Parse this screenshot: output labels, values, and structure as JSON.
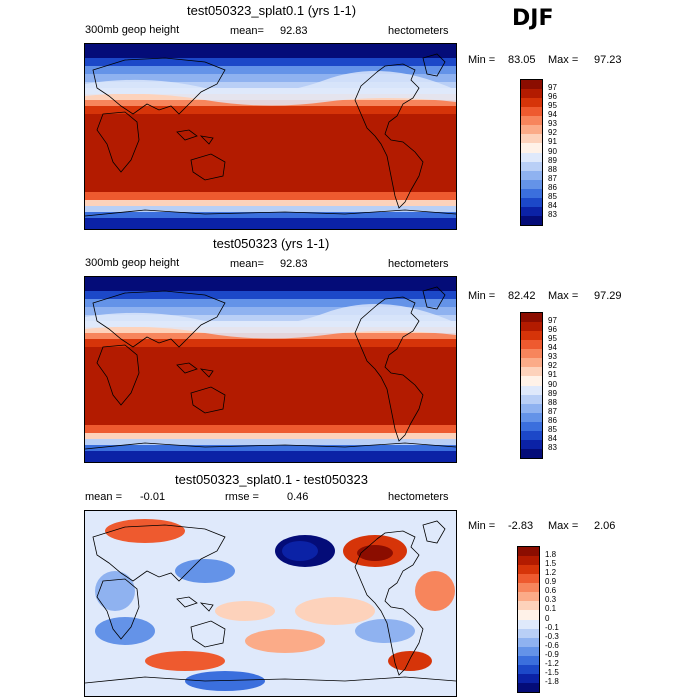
{
  "season": "DJF",
  "panels": [
    {
      "title": "test050323_splat0.1 (yrs 1-1)",
      "left_label": "300mb geop height",
      "stat1_label": "mean=",
      "stat1_value": "92.83",
      "stat2_label": "",
      "stat2_value": "",
      "units": "hectometers",
      "min_label": "Min =",
      "min_value": "83.05",
      "max_label": "Max =",
      "max_value": "97.23",
      "legend_labels": [
        "97",
        "96",
        "95",
        "94",
        "93",
        "92",
        "91",
        "90",
        "89",
        "88",
        "87",
        "86",
        "85",
        "84",
        "83"
      ],
      "legend_colors": [
        "#8b0d00",
        "#b31b00",
        "#d63409",
        "#ee5a2f",
        "#f7855c",
        "#fbab88",
        "#fdd2bb",
        "#fff2e8",
        "#dfe9fb",
        "#b9cff6",
        "#8fb2f0",
        "#6493e8",
        "#3b6fdd",
        "#1c48c8",
        "#0b22a6",
        "#040c78"
      ],
      "field": "absolute",
      "max_color": "#b31b00"
    },
    {
      "title": "test050323 (yrs 1-1)",
      "left_label": "300mb geop height",
      "stat1_label": "mean=",
      "stat1_value": "92.83",
      "stat2_label": "",
      "stat2_value": "",
      "units": "hectometers",
      "min_label": "Min =",
      "min_value": "82.42",
      "max_label": "Max =",
      "max_value": "97.29",
      "legend_labels": [
        "97",
        "96",
        "95",
        "94",
        "93",
        "92",
        "91",
        "90",
        "89",
        "88",
        "87",
        "86",
        "85",
        "84",
        "83"
      ],
      "legend_colors": [
        "#8b0d00",
        "#b31b00",
        "#d63409",
        "#ee5a2f",
        "#f7855c",
        "#fbab88",
        "#fdd2bb",
        "#fff2e8",
        "#dfe9fb",
        "#b9cff6",
        "#8fb2f0",
        "#6493e8",
        "#3b6fdd",
        "#1c48c8",
        "#0b22a6",
        "#040c78"
      ],
      "field": "absolute",
      "max_color": "#b31b00"
    },
    {
      "title": "test050323_splat0.1 - test050323",
      "left_label": "",
      "stat1_label": "mean =",
      "stat1_value": "-0.01",
      "stat2_label": "rmse =",
      "stat2_value": "0.46",
      "units": "hectometers",
      "min_label": "Min =",
      "min_value": "-2.83",
      "max_label": "Max =",
      "max_value": "2.06",
      "legend_labels": [
        "1.8",
        "1.5",
        "1.2",
        "0.9",
        "0.6",
        "0.3",
        "0.1",
        "0",
        "-0.1",
        "-0.3",
        "-0.6",
        "-0.9",
        "-1.2",
        "-1.5",
        "-1.8"
      ],
      "legend_colors": [
        "#8b0d00",
        "#b31b00",
        "#d63409",
        "#ee5a2f",
        "#f7855c",
        "#fbab88",
        "#fdd2bb",
        "#fff2e8",
        "#dfe9fb",
        "#b9cff6",
        "#8fb2f0",
        "#6493e8",
        "#3b6fdd",
        "#1c48c8",
        "#0b22a6",
        "#040c78"
      ],
      "field": "difference",
      "max_color": "#b31b00"
    }
  ]
}
